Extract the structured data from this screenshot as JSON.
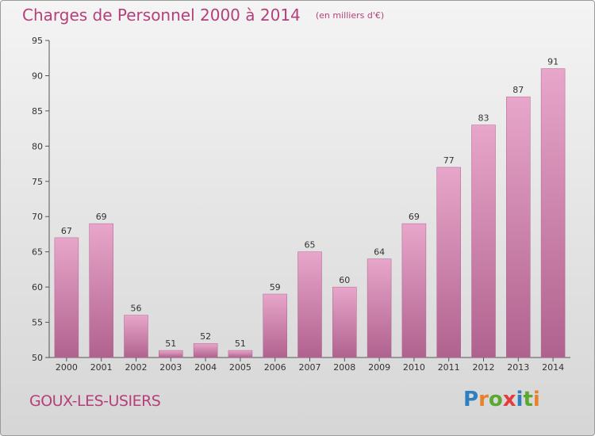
{
  "header": {
    "title": "Charges de Personnel 2000 à 2014",
    "subtitle": "(en milliers d'€)"
  },
  "footer": {
    "place_name": "GOUX-LES-USIERS",
    "brand": "Proxiti"
  },
  "colors": {
    "title": "#b53f7a",
    "bar_light": "#e8a6ca",
    "bar_dark": "#b0628e",
    "logo_letters": [
      "#2d7fc1",
      "#e8822a",
      "#5aa832",
      "#e23c3c",
      "#2d7fc1",
      "#5aa832",
      "#e8822a"
    ]
  },
  "chart_data": {
    "type": "bar",
    "categories": [
      "2000",
      "2001",
      "2002",
      "2003",
      "2004",
      "2005",
      "2006",
      "2007",
      "2008",
      "2009",
      "2010",
      "2011",
      "2012",
      "2013",
      "2014"
    ],
    "values": [
      67,
      69,
      56,
      51,
      52,
      51,
      59,
      65,
      60,
      64,
      69,
      77,
      83,
      87,
      91
    ],
    "title": "Charges de Personnel 2000 à 2014",
    "subtitle": "(en milliers d'€)",
    "xlabel": "",
    "ylabel": "",
    "ylim": [
      50,
      95
    ],
    "yticks": [
      50,
      55,
      60,
      65,
      70,
      75,
      80,
      85,
      90,
      95
    ],
    "grid": false,
    "legend": "none",
    "data_labels": true
  }
}
